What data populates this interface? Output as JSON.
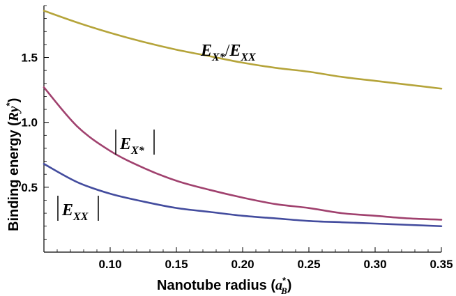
{
  "chart_data": {
    "type": "line",
    "xlabel": "Nanotube radius (a*_B)",
    "ylabel": "Binding energy (Ry*)",
    "xlim": [
      0.05,
      0.35
    ],
    "ylim": [
      0.0,
      1.9
    ],
    "x_ticks": [
      "0.10",
      "0.15",
      "0.20",
      "0.25",
      "0.30",
      "0.35"
    ],
    "y_ticks": [
      "0.5",
      "1.0",
      "1.5"
    ],
    "grid": false,
    "legend": "none",
    "series": [
      {
        "name": "E_X*/E_XX",
        "color": "#b5a43a",
        "x": [
          0.05,
          0.075,
          0.1,
          0.125,
          0.15,
          0.175,
          0.2,
          0.225,
          0.25,
          0.275,
          0.3,
          0.325,
          0.35
        ],
        "y": [
          1.86,
          1.77,
          1.69,
          1.62,
          1.56,
          1.51,
          1.46,
          1.42,
          1.39,
          1.35,
          1.32,
          1.29,
          1.26
        ]
      },
      {
        "name": "|E_X*|",
        "color": "#a0416e",
        "x": [
          0.05,
          0.075,
          0.1,
          0.125,
          0.15,
          0.175,
          0.2,
          0.225,
          0.25,
          0.275,
          0.3,
          0.325,
          0.35
        ],
        "y": [
          1.27,
          0.97,
          0.78,
          0.65,
          0.55,
          0.48,
          0.42,
          0.37,
          0.34,
          0.3,
          0.28,
          0.26,
          0.25
        ]
      },
      {
        "name": "|E_XX|",
        "color": "#434c9e",
        "x": [
          0.05,
          0.075,
          0.1,
          0.125,
          0.15,
          0.175,
          0.2,
          0.225,
          0.25,
          0.275,
          0.3,
          0.325,
          0.35
        ],
        "y": [
          0.68,
          0.54,
          0.45,
          0.39,
          0.34,
          0.31,
          0.28,
          0.26,
          0.24,
          0.23,
          0.22,
          0.21,
          0.2
        ]
      }
    ]
  }
}
